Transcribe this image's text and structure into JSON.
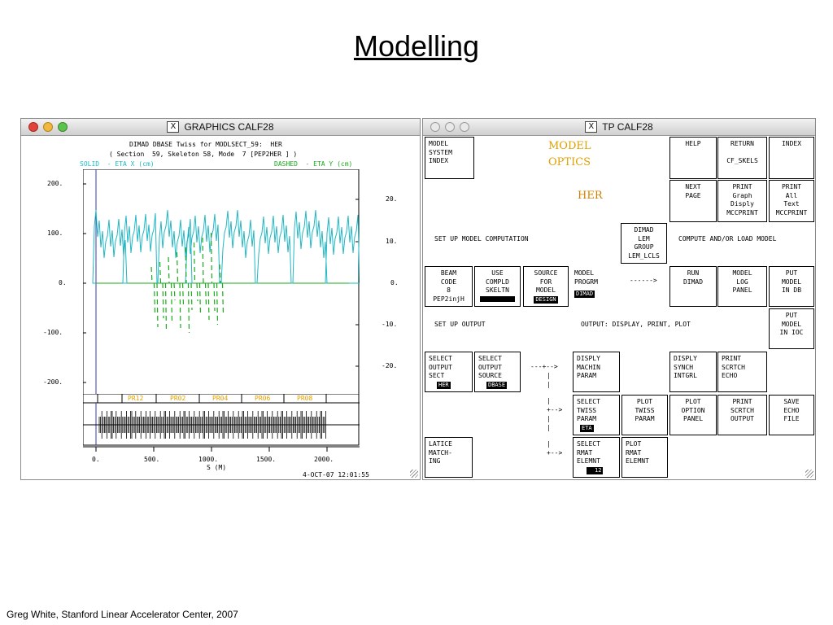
{
  "slide": {
    "title": "Modelling",
    "footer": "Greg White, Stanford Linear Accelerator Center, 2007"
  },
  "graphics_window": {
    "title": "GRAPHICS CALF28",
    "header_line1": "DIMAD DBASE Twiss for MODLSECT_59:  HER",
    "header_line2": "( Section  59, Skeleton 58, Mode  7 [PEP2HER ] )",
    "legend_solid": "SOLID  - ETA X (cm)",
    "legend_dashed": "DASHED  - ETA Y (cm)",
    "left_axis_ticks": [
      "200.",
      "100.",
      "0.",
      "-100.",
      "-200."
    ],
    "right_axis_ticks": [
      "20.",
      "10.",
      "0.",
      "-10.",
      "-20."
    ],
    "region_labels": [
      "PR12",
      "PR02",
      "PR04",
      "PR06",
      "PR08"
    ],
    "x_axis_ticks": [
      "0.",
      "500.",
      "1000.",
      "1500.",
      "2000."
    ],
    "x_axis_label": "S (M)",
    "timestamp": "4-OCT-07 12:01:55",
    "colors": {
      "eta_x": "#1fb8c4",
      "eta_y": "#1caa1c",
      "region": "#e0a000",
      "axis": "#3a3aaa"
    }
  },
  "tp_window": {
    "title": "TP CALF28",
    "heading_line1": "MODEL",
    "heading_line2": "OPTICS",
    "subheading": "HER",
    "colors": {
      "heading": "#e0a000",
      "subheading": "#d08000"
    },
    "boxes": {
      "model_system_index": "MODEL\nSYSTEM\nINDEX",
      "help": "HELP",
      "return": "RETURN\n\nCF_SKELS",
      "index": "INDEX",
      "next_page": "NEXT\nPAGE",
      "print_graph": "PRINT\nGraph\nDisply\nMCCPRINT",
      "print_text": "PRINT\nAll\nText\nMCCPRINT",
      "dimad_lem": "DIMAD\nLEM\nGROUP\nLEM_LCLS",
      "beam_code": "BEAM\nCODE\n8\nPEP2injH",
      "use_compld": "USE\nCOMPLD\nSKELTN",
      "source_for_model": "SOURCE\nFOR\nMODEL",
      "source_for_model_value": "DESIGN",
      "model_progrm": "MODEL\nPROGRM",
      "model_progrm_value": "DIMAD",
      "run_dimad": "RUN\nDIMAD",
      "model_log_panel": "MODEL\nLOG\nPANEL",
      "put_model_db": "PUT\nMODEL\nIN DB",
      "put_model_ioc": "PUT\nMODEL\nIN IOC",
      "select_output_sect": "SELECT\nOUTPUT\nSECT",
      "select_output_sect_value": "HER",
      "select_output_source": "SELECT\nOUTPUT\nSOURCE",
      "select_output_source_value": "DBASE",
      "disply_machin": "DISPLY\nMACHIN\nPARAM",
      "disply_synch": "DISPLY\nSYNCH\nINTGRL",
      "print_scrtch_echo": "PRINT\nSCRTCH\nECHO",
      "select_twiss": "SELECT\nTWISS\nPARAM",
      "select_twiss_value": "ETA",
      "plot_twiss": "PLOT\nTWISS\nPARAM",
      "plot_option": "PLOT\nOPTION\nPANEL",
      "print_scrtch_output": "PRINT\nSCRTCH\nOUTPUT",
      "save_echo": "SAVE\nECHO\nFILE",
      "latice_match": "LATICE\nMATCH-\nING",
      "select_rmat": "SELECT\nRMAT\nELEMNT",
      "select_rmat_value": "12",
      "plot_rmat": "PLOT\nRMAT\nELEMNT"
    },
    "labels": {
      "setup_model": "SET UP MODEL COMPUTATION",
      "compute_load": "COMPUTE AND/OR LOAD MODEL",
      "arrow_model": "------>",
      "setup_output": "SET UP OUTPUT",
      "output_display": "OUTPUT: DISPLAY, PRINT, PLOT",
      "arrow_row1": "---+-->",
      "arrow_row2": "+-->",
      "arrow_row3": "+-->",
      "pipe": "|"
    }
  }
}
